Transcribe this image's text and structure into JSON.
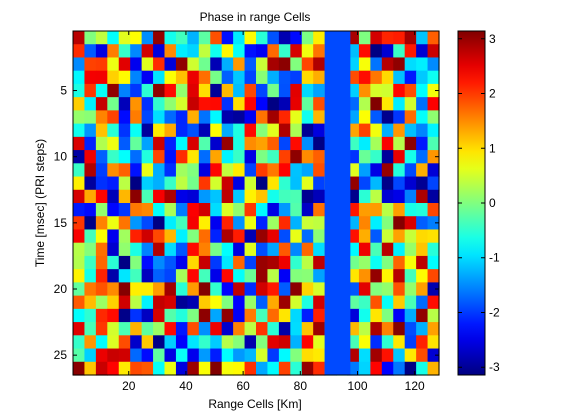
{
  "chart_data": {
    "type": "heatmap",
    "title": "Phase in range Cells",
    "xlabel": "Range Cells [Km]",
    "ylabel": "Time [msec] (PRI steps)",
    "x_range": [
      1,
      128
    ],
    "y_range": [
      1,
      26
    ],
    "x_ticks": [
      "20",
      "40",
      "60",
      "80",
      "100",
      "120"
    ],
    "y_ticks": [
      "5",
      "10",
      "15",
      "20",
      "25"
    ],
    "colorbar": {
      "colormap": "jet",
      "min": -3.1416,
      "max": 3.1416,
      "ticks": [
        "3",
        "2",
        "1",
        "0",
        "-1",
        "-2",
        "-3"
      ]
    },
    "constant_band": {
      "x_from": 89,
      "x_to": 97,
      "value": -1.9
    },
    "value_distribution": "uniform random phase in [-pi, pi]"
  }
}
